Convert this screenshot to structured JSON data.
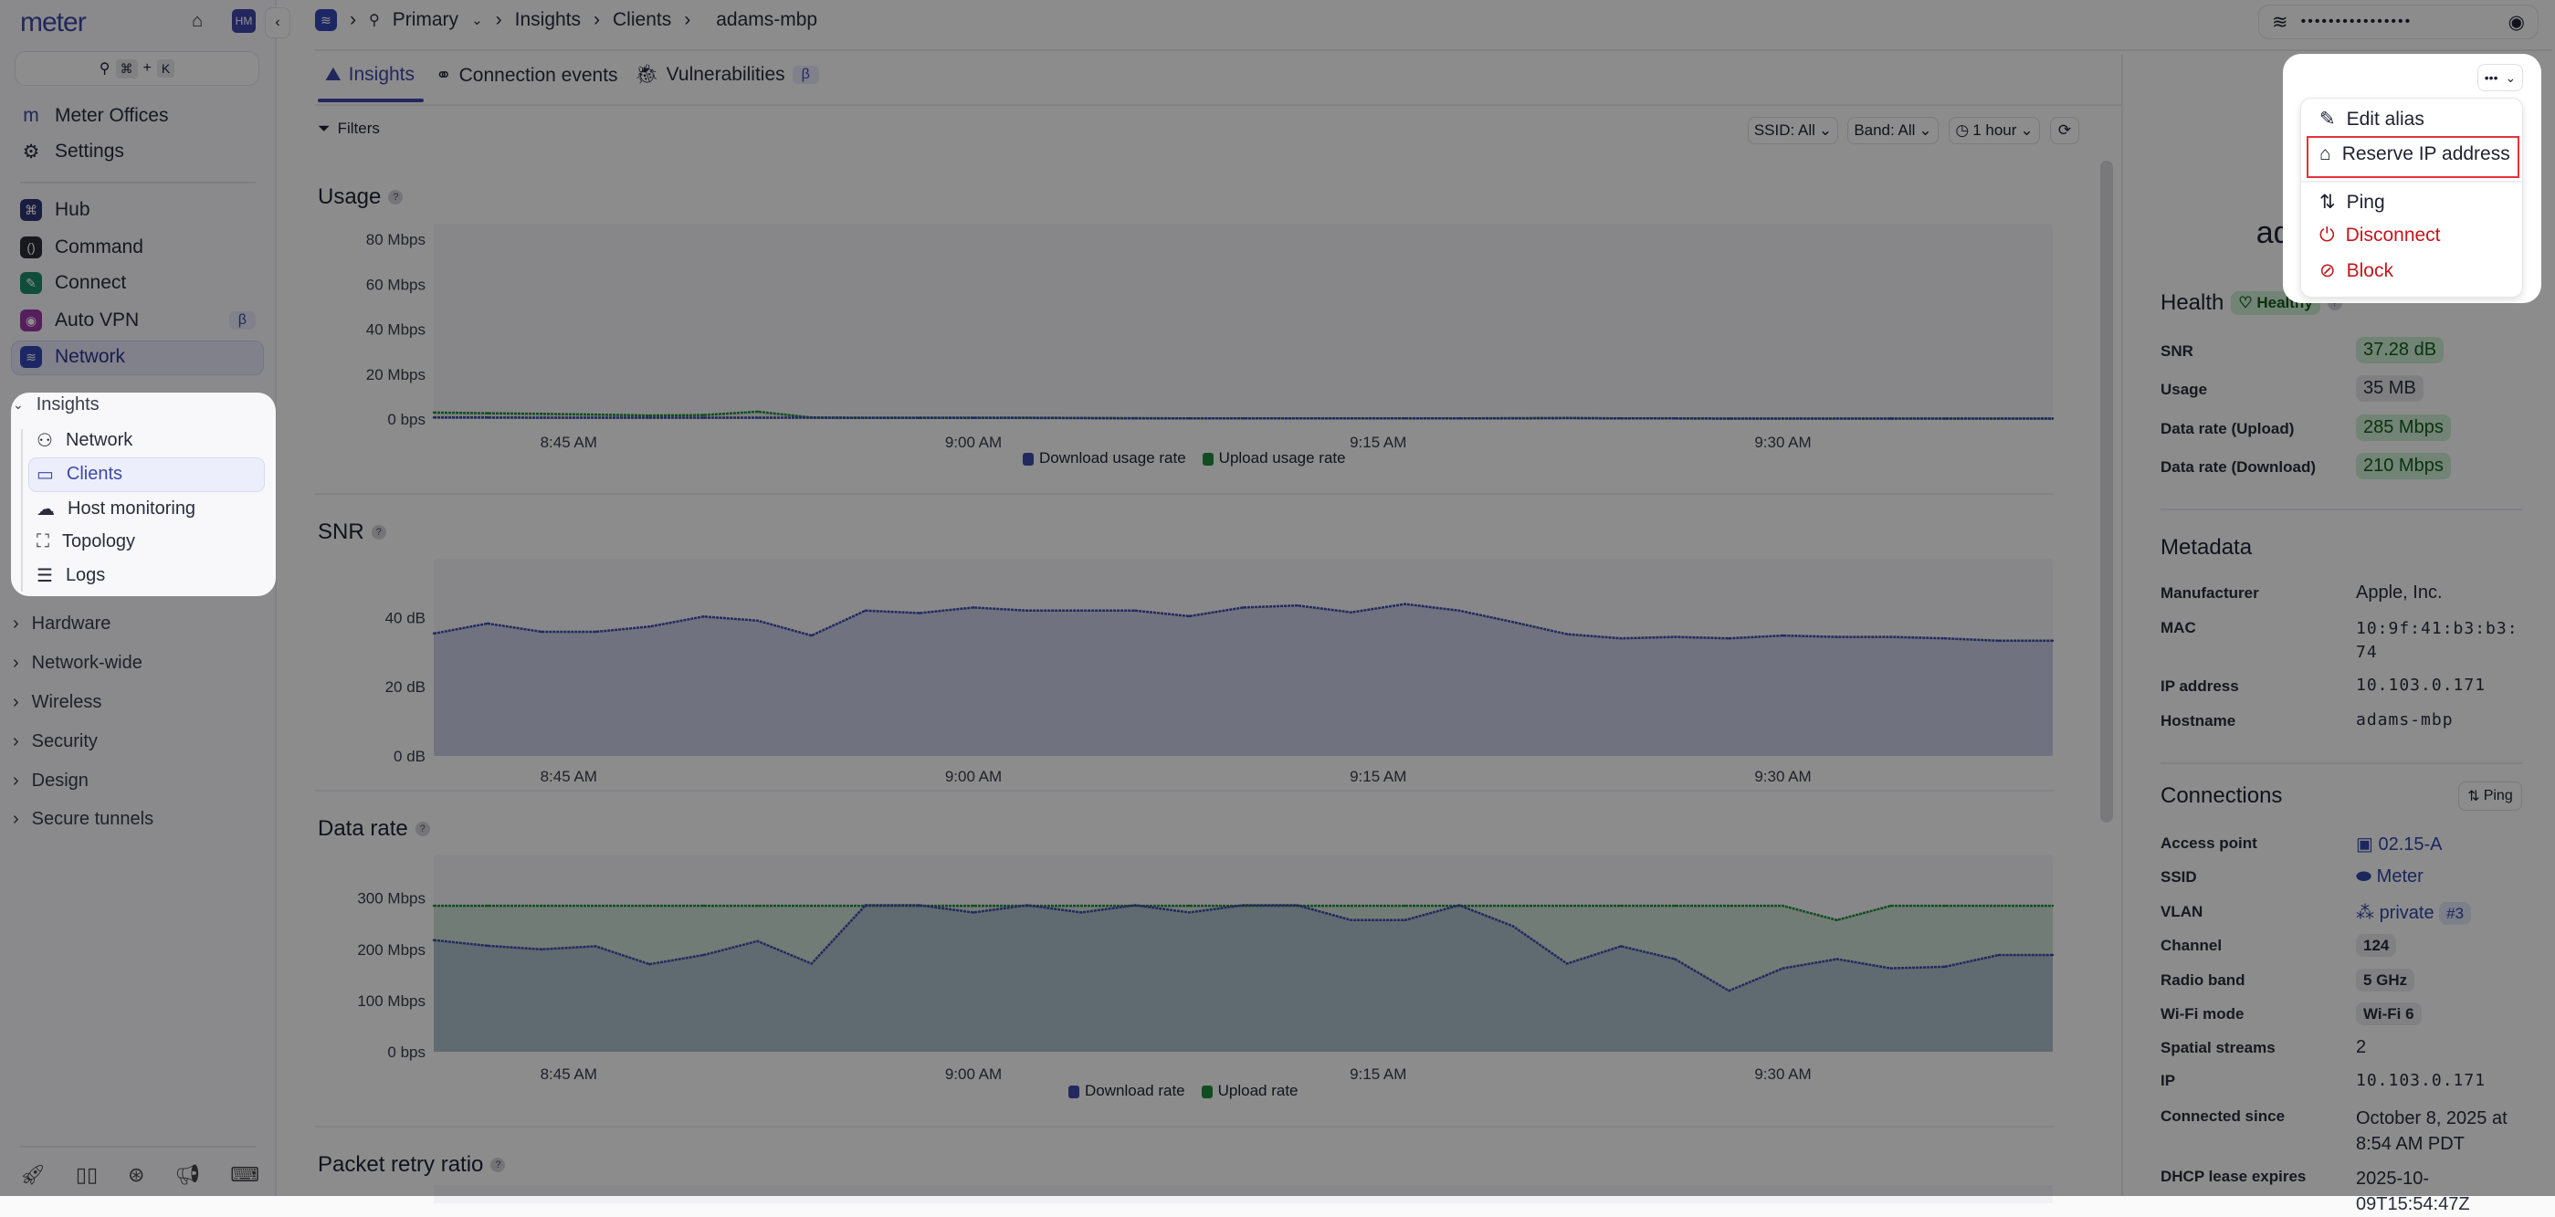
{
  "sidebar": {
    "logo": "meter",
    "avatar": "HM",
    "search_shortcut": [
      "⌘",
      "+",
      "K"
    ],
    "top_items": [
      {
        "label": "Meter Offices",
        "icon": "m"
      },
      {
        "label": "Settings",
        "icon": "gear-icon"
      }
    ],
    "apps": [
      {
        "label": "Hub",
        "color": "#2d3470"
      },
      {
        "label": "Command",
        "color": "#2b2d36"
      },
      {
        "label": "Connect",
        "color": "#1d8a6a"
      },
      {
        "label": "Auto VPN",
        "color": "#9b36a8",
        "badge": "β"
      },
      {
        "label": "Network",
        "color": "#3447b0"
      }
    ],
    "insights": {
      "label": "Insights",
      "items": [
        "Network",
        "Clients",
        "Host monitoring",
        "Topology",
        "Logs"
      ],
      "active": "Clients"
    },
    "sections": [
      "Hardware",
      "Network-wide",
      "Wireless",
      "Security",
      "Design",
      "Secure tunnels"
    ]
  },
  "header": {
    "breadcrumb": [
      "Primary",
      "Insights",
      "Clients",
      "adams-mbp"
    ],
    "wifi_password": "••••••••••••••••"
  },
  "tabs": [
    {
      "label": "Insights",
      "active": true
    },
    {
      "label": "Connection events"
    },
    {
      "label": "Vulnerabilities",
      "badge": "β"
    }
  ],
  "filters": {
    "label": "Filters",
    "ssid": "SSID: All",
    "band": "Band: All",
    "range": "1 hour"
  },
  "sections": {
    "usage": "Usage",
    "snr": "SNR",
    "rate": "Data rate",
    "retry": "Packet retry ratio"
  },
  "colors": {
    "download": "#3d4aa8",
    "upload": "#1f8a3a",
    "accent": "#3f47a6",
    "danger": "#c4151c"
  },
  "chart_data": [
    {
      "id": "usage",
      "type": "area",
      "title": "Usage",
      "x": [
        "8:40",
        "8:42",
        "8:44",
        "8:46",
        "8:48",
        "8:50",
        "8:52",
        "8:54",
        "8:56",
        "8:58",
        "9:00",
        "9:02",
        "9:04",
        "9:06",
        "9:08",
        "9:10",
        "9:12",
        "9:14",
        "9:16",
        "9:18",
        "9:20",
        "9:22",
        "9:24",
        "9:26",
        "9:28",
        "9:30",
        "9:32",
        "9:34",
        "9:36",
        "9:38",
        "9:40"
      ],
      "x_ticks": [
        "8:45 AM",
        "9:00 AM",
        "9:15 AM",
        "9:30 AM"
      ],
      "y_ticks": [
        "0 bps",
        "20 Mbps",
        "40 Mbps",
        "60 Mbps",
        "80 Mbps"
      ],
      "ylim": [
        0,
        87
      ],
      "grid": false,
      "legend": "bottom",
      "series": [
        {
          "name": "Download usage rate",
          "values": [
            0.7,
            0.7,
            0.6,
            0.6,
            0.6,
            0.6,
            0.6,
            0.6,
            0.5,
            0.5,
            0.5,
            0.5,
            0.4,
            0.3,
            0.3,
            0.3,
            0.3,
            0.3,
            0.3,
            0.3,
            0.3,
            0.4,
            0.3,
            0.3,
            0.2,
            0.2,
            0.2,
            0.2,
            0.2,
            0.2,
            0.2
          ]
        },
        {
          "name": "Upload usage rate",
          "values": [
            2.9,
            2.6,
            2.3,
            2.0,
            1.6,
            1.8,
            3.3,
            0.7,
            0.6,
            0.6,
            0.6,
            0.6,
            0.5,
            0.4,
            0.3,
            0.3,
            0.3,
            0.3,
            0.3,
            0.3,
            0.4,
            0.5,
            0.3,
            0.3,
            0.2,
            0.2,
            0.2,
            0.2,
            0.2,
            0.2,
            0.2
          ]
        }
      ]
    },
    {
      "id": "snr",
      "type": "area",
      "title": "SNR",
      "x_ticks": [
        "8:45 AM",
        "9:00 AM",
        "9:15 AM",
        "9:30 AM"
      ],
      "y_ticks": [
        "0 dB",
        "20 dB",
        "40 dB"
      ],
      "ylim": [
        0,
        57
      ],
      "grid": false,
      "series": [
        {
          "values": [
            35.4,
            38.3,
            35.9,
            35.9,
            37.4,
            40.3,
            39.1,
            34.8,
            42,
            41.3,
            42.9,
            42,
            42,
            42,
            40.4,
            42.9,
            43.5,
            41.5,
            43.9,
            42,
            38.7,
            35.2,
            34,
            34.4,
            34,
            34.8,
            34.4,
            34.4,
            34,
            33.3,
            33.3
          ]
        }
      ]
    },
    {
      "id": "rate",
      "type": "area",
      "title": "Data rate",
      "x_ticks": [
        "8:45 AM",
        "9:00 AM",
        "9:15 AM",
        "9:30 AM"
      ],
      "y_ticks": [
        "0 bps",
        "100 Mbps",
        "200 Mbps",
        "300 Mbps"
      ],
      "ylim": [
        0,
        385
      ],
      "grid": false,
      "legend": "bottom",
      "series": [
        {
          "name": "Download rate",
          "values": [
            218,
            207,
            200,
            206,
            171,
            189,
            216,
            172,
            286,
            286,
            272,
            286,
            272,
            286,
            272,
            286,
            286,
            257,
            257,
            286,
            245,
            172,
            206,
            181,
            119,
            163,
            181,
            163,
            166,
            189,
            189
          ]
        },
        {
          "name": "Upload rate",
          "values": [
            285,
            285,
            285,
            285,
            285,
            285,
            285,
            285,
            285,
            285,
            285,
            285,
            285,
            285,
            285,
            285,
            285,
            285,
            285,
            285,
            285,
            285,
            285,
            285,
            285,
            285,
            257,
            285,
            285,
            285,
            285
          ]
        }
      ]
    }
  ],
  "panel": {
    "title": "adams-mbp",
    "menu": {
      "items": [
        {
          "label": "Edit alias",
          "icon": "pencil-icon"
        },
        {
          "label": "Reserve IP address",
          "icon": "reserve-ip-icon",
          "highlighted": true
        },
        {
          "label": "Ping",
          "icon": "ping-icon"
        },
        {
          "label": "Disconnect",
          "icon": "disconnect-icon",
          "danger": true
        },
        {
          "label": "Block",
          "icon": "block-icon",
          "danger": true
        }
      ]
    },
    "health": {
      "title": "Health",
      "status": "Healthy",
      "rows": [
        {
          "label": "SNR",
          "value": "37.28 dB"
        },
        {
          "label": "Usage",
          "value": "35 MB"
        },
        {
          "label": "Data rate (Upload)",
          "value": "285 Mbps"
        },
        {
          "label": "Data rate (Download)",
          "value": "210 Mbps"
        }
      ]
    },
    "metadata": {
      "title": "Metadata",
      "rows": [
        {
          "label": "Manufacturer",
          "value": "Apple, Inc."
        },
        {
          "label": "MAC",
          "value": "10:9f:41:b3:b3:74"
        },
        {
          "label": "IP address",
          "value": "10.103.0.171"
        },
        {
          "label": "Hostname",
          "value": "adams-mbp"
        }
      ]
    },
    "connections": {
      "title": "Connections",
      "ping": "Ping",
      "rows": [
        {
          "label": "Access point",
          "value": "02.15-A"
        },
        {
          "label": "SSID",
          "value": "Meter"
        },
        {
          "label": "VLAN",
          "value": "private",
          "tag": "#3"
        },
        {
          "label": "Channel",
          "value": "124"
        },
        {
          "label": "Radio band",
          "value": "5 GHz"
        },
        {
          "label": "Wi-Fi mode",
          "value": "Wi-Fi 6"
        },
        {
          "label": "Spatial streams",
          "value": "2"
        },
        {
          "label": "IP",
          "value": "10.103.0.171"
        },
        {
          "label": "Connected since",
          "value": "October 8, 2025 at 8:54 AM PDT"
        },
        {
          "label": "DHCP lease expires",
          "value": "2025-10-09T15:54:47Z"
        }
      ]
    }
  }
}
